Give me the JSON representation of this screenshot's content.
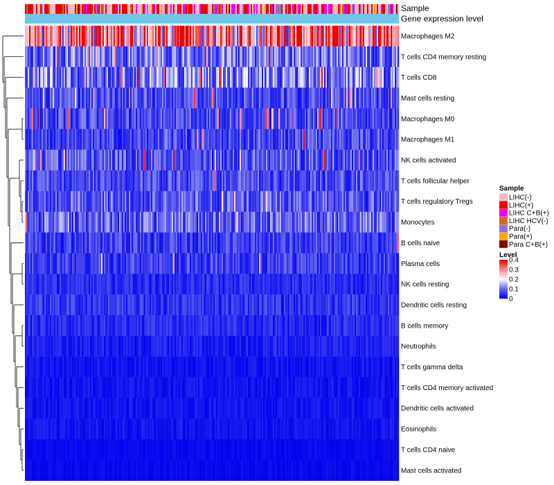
{
  "chart_data": {
    "type": "heatmap",
    "title": "",
    "annotation_tracks": [
      "Sample",
      "Gene expression level"
    ],
    "rows": [
      "Macrophages M2",
      "T cells CD4 memory resting",
      "T cells CD8",
      "Mast cells resting",
      "Macrophages M0",
      "Macrophages M1",
      "NK cells activated",
      "T cells follicular helper",
      "T cells regulatory  Tregs",
      "Monocytes",
      "B cells naive",
      "Plasma cells",
      "NK cells resting",
      "Dendritic cells resting",
      "B cells memory",
      "Neutrophils",
      "T cells gamma delta",
      "T cells CD4 memory activated",
      "Dendritic cells activated",
      "Eosinophils",
      "T cells CD4 naive",
      "Mast cells activated"
    ],
    "row_mean_level": [
      0.3,
      0.1,
      0.11,
      0.07,
      0.07,
      0.07,
      0.08,
      0.07,
      0.08,
      0.09,
      0.06,
      0.06,
      0.04,
      0.05,
      0.04,
      0.03,
      0.02,
      0.02,
      0.02,
      0.02,
      0.01,
      0.01
    ],
    "row_spike_rate": [
      0.3,
      0.03,
      0.05,
      0.04,
      0.04,
      0.01,
      0.02,
      0.01,
      0.02,
      0.01,
      0.01,
      0.01,
      0.0,
      0.0,
      0.0,
      0.0,
      0.0,
      0.0,
      0.0,
      0.0,
      0.0,
      0.0
    ],
    "n_samples": 270,
    "sample_legend": {
      "title": "Sample",
      "entries": [
        {
          "label": "LIHC(-)",
          "color": "#FFB6C1"
        },
        {
          "label": "LIHC(+)",
          "color": "#EE0000"
        },
        {
          "label": "LIHC C+B(+)",
          "color": "#EE00EE"
        },
        {
          "label": "LIHC HCV(-)",
          "color": "#D2691E"
        },
        {
          "label": "Para(-)",
          "color": "#9370DB"
        },
        {
          "label": "Para(+)",
          "color": "#FFA500"
        },
        {
          "label": "Para C+B(+)",
          "color": "#8B0000"
        }
      ]
    },
    "sample_mix_weights": [
      0.42,
      0.28,
      0.18,
      0.03,
      0.05,
      0.02,
      0.02
    ],
    "level_legend": {
      "title": "Level",
      "ticks": [
        "0.4",
        "0.3",
        "0.2",
        "0.1",
        "0"
      ],
      "range": [
        0,
        0.4
      ],
      "color_stops": [
        "#0000EE",
        "#6666F0",
        "#FFFFFF",
        "#FF8888",
        "#EE0000"
      ]
    },
    "gene_expression_track_color": "#6EC6E8",
    "dendrogram": "left"
  }
}
